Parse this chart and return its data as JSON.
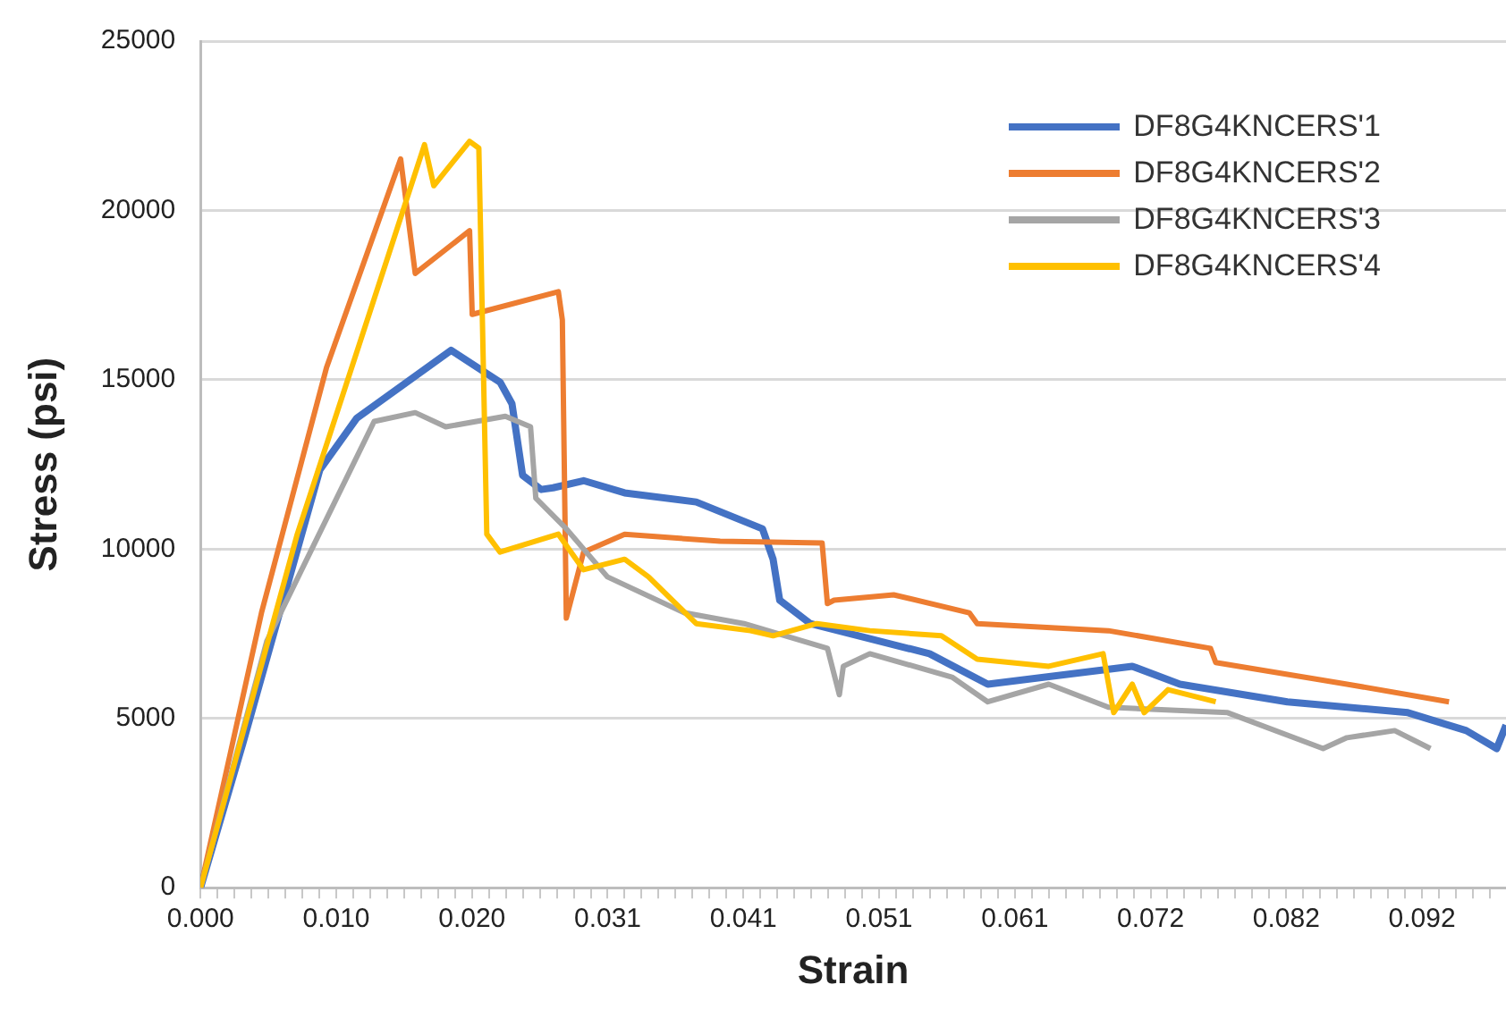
{
  "chart_data": {
    "type": "line",
    "xlabel": "Strain",
    "ylabel": "Stress (psi)",
    "xlim": [
      0,
      0.0985
    ],
    "ylim": [
      0,
      25000
    ],
    "xticks": [
      {
        "value": 0,
        "label": "0.000"
      },
      {
        "value": 0.00128,
        "label": null
      },
      {
        "value": 0.00256,
        "label": null
      },
      {
        "value": 0.00384,
        "label": null
      },
      {
        "value": 0.00512,
        "label": null
      },
      {
        "value": 0.0064,
        "label": null
      },
      {
        "value": 0.00768,
        "label": null
      },
      {
        "value": 0.00896,
        "label": null
      },
      {
        "value": 0.01024,
        "label": "0.010"
      },
      {
        "value": 0.01152,
        "label": null
      },
      {
        "value": 0.0128,
        "label": null
      },
      {
        "value": 0.01408,
        "label": null
      },
      {
        "value": 0.01536,
        "label": null
      },
      {
        "value": 0.01664,
        "label": null
      },
      {
        "value": 0.01792,
        "label": null
      },
      {
        "value": 0.0192,
        "label": null
      },
      {
        "value": 0.02048,
        "label": "0.020"
      },
      {
        "value": 0.02176,
        "label": null
      },
      {
        "value": 0.02304,
        "label": null
      },
      {
        "value": 0.02432,
        "label": null
      },
      {
        "value": 0.0256,
        "label": null
      },
      {
        "value": 0.02688,
        "label": null
      },
      {
        "value": 0.02816,
        "label": null
      },
      {
        "value": 0.02944,
        "label": null
      },
      {
        "value": 0.03072,
        "label": "0.031"
      },
      {
        "value": 0.032,
        "label": null
      },
      {
        "value": 0.03328,
        "label": null
      },
      {
        "value": 0.03456,
        "label": null
      },
      {
        "value": 0.03584,
        "label": null
      },
      {
        "value": 0.03712,
        "label": null
      },
      {
        "value": 0.0384,
        "label": null
      },
      {
        "value": 0.03968,
        "label": null
      },
      {
        "value": 0.04096,
        "label": "0.041"
      },
      {
        "value": 0.04224,
        "label": null
      },
      {
        "value": 0.04352,
        "label": null
      },
      {
        "value": 0.0448,
        "label": null
      },
      {
        "value": 0.04608,
        "label": null
      },
      {
        "value": 0.04736,
        "label": null
      },
      {
        "value": 0.04864,
        "label": null
      },
      {
        "value": 0.04992,
        "label": null
      },
      {
        "value": 0.0512,
        "label": "0.051"
      },
      {
        "value": 0.05248,
        "label": null
      },
      {
        "value": 0.05376,
        "label": null
      },
      {
        "value": 0.05504,
        "label": null
      },
      {
        "value": 0.05632,
        "label": null
      },
      {
        "value": 0.0576,
        "label": null
      },
      {
        "value": 0.05888,
        "label": null
      },
      {
        "value": 0.06016,
        "label": null
      },
      {
        "value": 0.06144,
        "label": "0.061"
      },
      {
        "value": 0.06272,
        "label": null
      },
      {
        "value": 0.064,
        "label": null
      },
      {
        "value": 0.06528,
        "label": null
      },
      {
        "value": 0.06656,
        "label": null
      },
      {
        "value": 0.06784,
        "label": null
      },
      {
        "value": 0.06912,
        "label": null
      },
      {
        "value": 0.0704,
        "label": null
      },
      {
        "value": 0.07168,
        "label": "0.072"
      },
      {
        "value": 0.07296,
        "label": null
      },
      {
        "value": 0.07424,
        "label": null
      },
      {
        "value": 0.07552,
        "label": null
      },
      {
        "value": 0.0768,
        "label": null
      },
      {
        "value": 0.07808,
        "label": null
      },
      {
        "value": 0.07936,
        "label": null
      },
      {
        "value": 0.08064,
        "label": null
      },
      {
        "value": 0.08192,
        "label": "0.082"
      },
      {
        "value": 0.0832,
        "label": null
      },
      {
        "value": 0.08448,
        "label": null
      },
      {
        "value": 0.08576,
        "label": null
      },
      {
        "value": 0.08704,
        "label": null
      },
      {
        "value": 0.08832,
        "label": null
      },
      {
        "value": 0.0896,
        "label": null
      },
      {
        "value": 0.09088,
        "label": null
      },
      {
        "value": 0.09216,
        "label": "0.092"
      },
      {
        "value": 0.09344,
        "label": null
      },
      {
        "value": 0.09472,
        "label": null
      },
      {
        "value": 0.096,
        "label": null
      },
      {
        "value": 0.09728,
        "label": null
      }
    ],
    "yticks": [
      0,
      5000,
      10000,
      15000,
      20000,
      25000
    ],
    "grid": "y",
    "legend": "top right",
    "marker": "none",
    "line_style": "solid",
    "series": [
      {
        "name": "DF8G4KNCERS'1",
        "color": "#4472c4",
        "x": [
          0,
          0.0032,
          0.009,
          0.0118,
          0.0189,
          0.0226,
          0.0235,
          0.0243,
          0.0257,
          0.0266,
          0.0289,
          0.032,
          0.0374,
          0.0424,
          0.0432,
          0.0437,
          0.046,
          0.055,
          0.0594,
          0.0703,
          0.0739,
          0.082,
          0.0911,
          0.0955,
          0.0978,
          0.0985
        ],
        "values": [
          0,
          4270,
          12340,
          13870,
          15870,
          14930,
          14290,
          12180,
          11760,
          11810,
          12020,
          11660,
          11390,
          10600,
          9700,
          8490,
          7800,
          6910,
          6010,
          6540,
          6010,
          5490,
          5170,
          4640,
          4110,
          4800
        ]
      },
      {
        "name": "DF8G4KNCERS'2",
        "color": "#ed7d31",
        "x": [
          0,
          0.0046,
          0.0095,
          0.0151,
          0.0162,
          0.0203,
          0.0205,
          0.027,
          0.0273,
          0.0276,
          0.0289,
          0.032,
          0.0392,
          0.0469,
          0.0473,
          0.0478,
          0.0523,
          0.058,
          0.0586,
          0.0685,
          0.0762,
          0.0766,
          0.0865,
          0.0942
        ],
        "values": [
          0,
          8120,
          15350,
          21520,
          18140,
          19400,
          16930,
          17600,
          16770,
          7960,
          9910,
          10440,
          10230,
          10180,
          8390,
          8490,
          8650,
          8120,
          7800,
          7590,
          7070,
          6650,
          6010,
          5490
        ]
      },
      {
        "name": "DF8G4KNCERS'3",
        "color": "#a5a5a5",
        "x": [
          0,
          0.005,
          0.0131,
          0.0162,
          0.0185,
          0.023,
          0.0249,
          0.0253,
          0.0276,
          0.0307,
          0.0365,
          0.041,
          0.0473,
          0.0482,
          0.0485,
          0.0505,
          0.0567,
          0.0594,
          0.064,
          0.0685,
          0.0775,
          0.0847,
          0.0865,
          0.0901,
          0.0928
        ],
        "values": [
          0,
          7280,
          13770,
          14030,
          13610,
          13920,
          13610,
          11500,
          10600,
          9180,
          8120,
          7800,
          7070,
          5700,
          6540,
          6910,
          6220,
          5490,
          6010,
          5330,
          5170,
          4110,
          4430,
          4640,
          4110
        ]
      },
      {
        "name": "DF8G4KNCERS'4",
        "color": "#ffc000",
        "x": [
          0,
          0.0073,
          0.0169,
          0.0176,
          0.0203,
          0.021,
          0.0216,
          0.0226,
          0.027,
          0.0289,
          0.032,
          0.0338,
          0.0374,
          0.0415,
          0.0432,
          0.0465,
          0.0505,
          0.0559,
          0.0586,
          0.064,
          0.0681,
          0.0689,
          0.0703,
          0.0712,
          0.073,
          0.0766
        ],
        "values": [
          0,
          10440,
          21940,
          20730,
          22040,
          21840,
          10440,
          9910,
          10440,
          9390,
          9700,
          9180,
          7800,
          7590,
          7440,
          7800,
          7590,
          7440,
          6750,
          6540,
          6910,
          5170,
          6010,
          5170,
          5850,
          5490
        ]
      }
    ]
  }
}
